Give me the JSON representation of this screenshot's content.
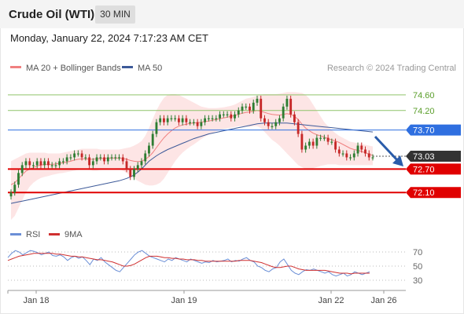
{
  "header": {
    "title": "Crude Oil (WTI)",
    "timeframe": "30 MIN",
    "datetime": "Monday, January 22, 2024 7:17:23 AM CET"
  },
  "legend": {
    "bollinger": "MA 20 + Bollinger Bands",
    "ma50": "MA 50",
    "credit": "Research © 2024 Trading Central",
    "rsi": "RSI",
    "ma9": "9MA"
  },
  "colors": {
    "up": "#2e7d32",
    "down": "#c62828",
    "ma20": "#f08080",
    "bband_fill": "#fde0e0",
    "ma50": "#3d5a99",
    "resistance_green": "#5a9e2a",
    "pivot_blue": "#2f6fe0",
    "support_red": "#e00000",
    "arrow": "#2a5caa",
    "rsi": "#6b8fd6",
    "rsi_ma": "#d03030"
  },
  "chart_data": [
    {
      "type": "candlestick",
      "ylim": [
        71.3,
        75.1
      ],
      "x_ticks": [
        "Jan 18",
        "Jan 19",
        "Jan 22",
        "Jan 26"
      ],
      "levels": [
        {
          "value": 74.6,
          "label": "74.60",
          "style": "resistance"
        },
        {
          "value": 74.2,
          "label": "74.20",
          "style": "resistance"
        },
        {
          "value": 73.7,
          "label": "73.70",
          "style": "pivot"
        },
        {
          "value": 73.03,
          "label": "73.03",
          "style": "last"
        },
        {
          "value": 72.7,
          "label": "72.70",
          "style": "support"
        },
        {
          "value": 72.1,
          "label": "72.10",
          "style": "support"
        }
      ],
      "close": [
        72.1,
        72.3,
        72.6,
        72.8,
        72.9,
        72.8,
        72.8,
        72.9,
        72.8,
        72.9,
        72.8,
        72.8,
        72.8,
        72.9,
        72.9,
        73.0,
        73.0,
        73.1,
        73.1,
        73.0,
        73.0,
        72.8,
        72.9,
        73.0,
        73.0,
        72.9,
        73.0,
        73.0,
        73.0,
        73.0,
        72.9,
        72.7,
        72.5,
        72.7,
        72.8,
        72.9,
        73.1,
        73.3,
        73.6,
        73.9,
        74.0,
        73.9,
        74.0,
        74.0,
        74.0,
        73.9,
        74.0,
        73.9,
        73.9,
        73.9,
        73.8,
        73.9,
        74.0,
        74.0,
        74.0,
        74.0,
        74.1,
        74.1,
        74.1,
        74.0,
        74.1,
        74.2,
        74.3,
        74.3,
        74.2,
        74.4,
        74.5,
        74.0,
        73.9,
        73.8,
        73.8,
        73.9,
        74.0,
        74.3,
        74.5,
        74.1,
        73.9,
        73.6,
        73.2,
        73.3,
        73.4,
        73.3,
        73.5,
        73.5,
        73.5,
        73.4,
        73.4,
        73.2,
        73.1,
        73.1,
        73.0,
        73.0,
        73.1,
        73.3,
        73.2,
        73.1,
        73.0,
        73.0
      ],
      "ma20": [
        72.3,
        72.35,
        72.45,
        72.55,
        72.65,
        72.7,
        72.74,
        72.78,
        72.8,
        72.82,
        72.82,
        72.82,
        72.83,
        72.85,
        72.86,
        72.88,
        72.9,
        72.93,
        72.95,
        72.96,
        72.96,
        72.95,
        72.95,
        72.96,
        72.97,
        72.97,
        72.98,
        72.98,
        72.98,
        72.98,
        72.97,
        72.95,
        72.92,
        72.9,
        72.89,
        72.9,
        72.95,
        73.02,
        73.12,
        73.25,
        73.38,
        73.5,
        73.6,
        73.68,
        73.75,
        73.8,
        73.83,
        73.85,
        73.87,
        73.88,
        73.89,
        73.9,
        73.92,
        73.93,
        73.95,
        73.97,
        73.99,
        74.01,
        74.03,
        74.05,
        74.07,
        74.1,
        74.13,
        74.15,
        74.16,
        74.18,
        74.2,
        74.18,
        74.15,
        74.12,
        74.1,
        74.09,
        74.08,
        74.1,
        74.12,
        74.1,
        74.05,
        73.97,
        73.85,
        73.75,
        73.68,
        73.62,
        73.58,
        73.55,
        73.52,
        73.48,
        73.45,
        73.42,
        73.38,
        73.33,
        73.28,
        73.23,
        73.2,
        73.18,
        73.15,
        73.12,
        73.08,
        73.05
      ],
      "bb_upper": [
        72.9,
        72.95,
        73.0,
        73.05,
        73.1,
        73.12,
        73.12,
        73.12,
        73.12,
        73.12,
        73.1,
        73.1,
        73.1,
        73.1,
        73.12,
        73.14,
        73.16,
        73.18,
        73.2,
        73.22,
        73.22,
        73.22,
        73.22,
        73.22,
        73.2,
        73.2,
        73.2,
        73.2,
        73.2,
        73.2,
        73.22,
        73.24,
        73.26,
        73.3,
        73.35,
        73.42,
        73.55,
        73.75,
        73.98,
        74.2,
        74.38,
        74.52,
        74.6,
        74.62,
        74.62,
        74.6,
        74.55,
        74.5,
        74.45,
        74.4,
        74.35,
        74.3,
        74.28,
        74.26,
        74.26,
        74.26,
        74.27,
        74.28,
        74.3,
        74.32,
        74.35,
        74.4,
        74.45,
        74.5,
        74.52,
        74.55,
        74.58,
        74.6,
        74.62,
        74.62,
        74.62,
        74.62,
        74.63,
        74.65,
        74.67,
        74.67,
        74.67,
        74.66,
        74.65,
        74.6,
        74.5,
        74.35,
        74.2,
        74.05,
        73.9,
        73.8,
        73.7,
        73.62,
        73.55,
        73.5,
        73.45,
        73.4,
        73.38,
        73.36,
        73.34,
        73.32,
        73.3,
        73.28
      ],
      "bb_lower": [
        71.4,
        71.5,
        71.7,
        71.9,
        72.1,
        72.25,
        72.35,
        72.42,
        72.47,
        72.5,
        72.52,
        72.55,
        72.57,
        72.59,
        72.6,
        72.62,
        72.64,
        72.66,
        72.68,
        72.7,
        72.7,
        72.68,
        72.66,
        72.66,
        72.68,
        72.7,
        72.72,
        72.72,
        72.72,
        72.7,
        72.66,
        72.6,
        72.52,
        72.45,
        72.4,
        72.35,
        72.3,
        72.28,
        72.28,
        72.3,
        72.35,
        72.45,
        72.6,
        72.75,
        72.9,
        73.02,
        73.12,
        73.2,
        73.27,
        73.33,
        73.4,
        73.47,
        73.53,
        73.58,
        73.63,
        73.67,
        73.7,
        73.72,
        73.74,
        73.76,
        73.78,
        73.8,
        73.8,
        73.8,
        73.78,
        73.8,
        73.8,
        73.75,
        73.65,
        73.55,
        73.45,
        73.38,
        73.3,
        73.2,
        73.1,
        73.0,
        72.9,
        72.8,
        72.75,
        72.7,
        72.7,
        72.72,
        72.75,
        72.78,
        72.8,
        72.82,
        72.82,
        72.82,
        72.8,
        72.8,
        72.8,
        72.8,
        72.8,
        72.8,
        72.8,
        72.8,
        72.8,
        72.8
      ],
      "ma50": [
        71.82,
        71.84,
        71.86,
        71.88,
        71.9,
        71.92,
        71.94,
        71.96,
        71.98,
        72.0,
        72.02,
        72.04,
        72.06,
        72.08,
        72.1,
        72.12,
        72.14,
        72.16,
        72.18,
        72.2,
        72.22,
        72.24,
        72.26,
        72.28,
        72.3,
        72.32,
        72.34,
        72.36,
        72.38,
        72.4,
        72.43,
        72.46,
        72.5,
        72.55,
        72.62,
        72.7,
        72.8,
        72.9,
        72.97,
        73.04,
        73.1,
        73.15,
        73.2,
        73.24,
        73.28,
        73.32,
        73.36,
        73.4,
        73.44,
        73.48,
        73.51,
        73.54,
        73.57,
        73.6,
        73.62,
        73.64,
        73.66,
        73.68,
        73.7,
        73.72,
        73.74,
        73.76,
        73.78,
        73.8,
        73.82,
        73.84,
        73.86,
        73.87,
        73.88,
        73.88,
        73.88,
        73.88,
        73.88,
        73.88,
        73.88,
        73.87,
        73.86,
        73.85,
        73.84,
        73.83,
        73.82,
        73.81,
        73.8,
        73.79,
        73.78,
        73.77,
        73.76,
        73.75,
        73.74,
        73.73,
        73.72,
        73.71,
        73.7,
        73.69,
        73.68,
        73.67,
        73.66,
        73.65
      ]
    },
    {
      "type": "line",
      "name": "RSI",
      "ylim": [
        20,
        80
      ],
      "y_ticks": [
        70,
        50,
        30
      ],
      "rsi": [
        62,
        68,
        72,
        70,
        66,
        69,
        72,
        71,
        69,
        66,
        68,
        70,
        65,
        64,
        66,
        63,
        58,
        62,
        64,
        61,
        63,
        58,
        52,
        60,
        58,
        62,
        56,
        52,
        48,
        44,
        42,
        48,
        54,
        60,
        66,
        70,
        72,
        68,
        64,
        62,
        60,
        58,
        56,
        60,
        58,
        62,
        60,
        58,
        56,
        60,
        58,
        56,
        54,
        56,
        55,
        58,
        56,
        57,
        58,
        60,
        56,
        58,
        57,
        60,
        62,
        58,
        56,
        50,
        48,
        44,
        42,
        46,
        48,
        56,
        60,
        52,
        44,
        40,
        38,
        42,
        45,
        44,
        46,
        44,
        42,
        40,
        42,
        38,
        36,
        38,
        40,
        36,
        38,
        42,
        40,
        38,
        40,
        42
      ],
      "rsi_ma": [
        58,
        60,
        62,
        64,
        65,
        66,
        67,
        68,
        68,
        68,
        68,
        68,
        68,
        67,
        67,
        66,
        65,
        64,
        64,
        63,
        63,
        62,
        61,
        60,
        59,
        59,
        58,
        57,
        56,
        54,
        52,
        50,
        50,
        51,
        53,
        56,
        59,
        62,
        64,
        64,
        64,
        63,
        62,
        62,
        61,
        61,
        60,
        60,
        59,
        59,
        59,
        58,
        58,
        57,
        57,
        57,
        57,
        57,
        57,
        57,
        57,
        57,
        58,
        58,
        58,
        58,
        57,
        56,
        55,
        53,
        51,
        49,
        48,
        48,
        49,
        50,
        50,
        48,
        46,
        45,
        44,
        44,
        44,
        44,
        44,
        44,
        43,
        42,
        41,
        40,
        40,
        40,
        39,
        40,
        40,
        40,
        40,
        40
      ]
    }
  ]
}
